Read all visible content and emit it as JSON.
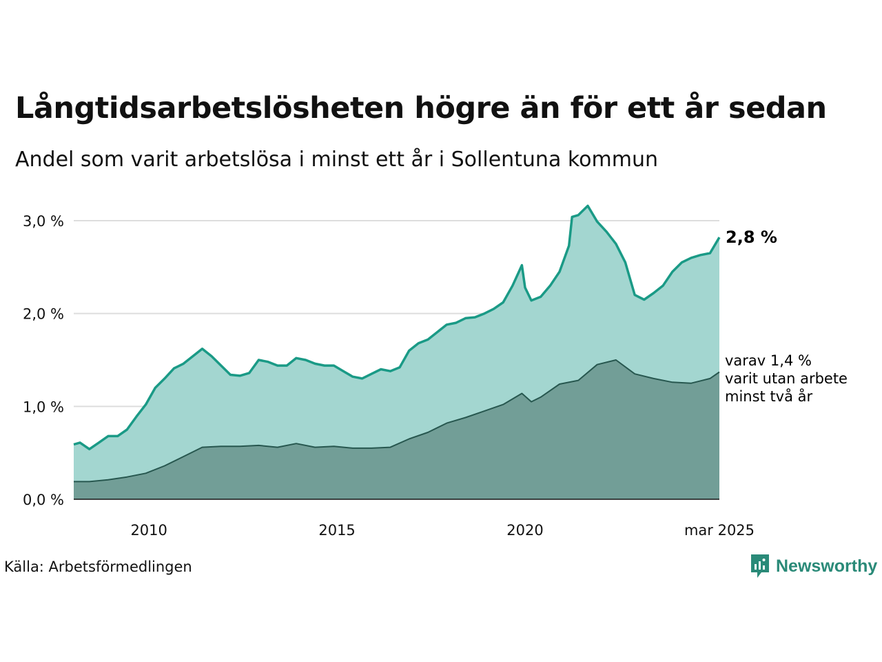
{
  "title": "Långtidsarbetslösheten högre än för ett år sedan",
  "subtitle": "Andel som varit arbetslösa i minst ett år i Sollentuna kommun",
  "source": "Källa: Arbetsförmedlingen",
  "brand": {
    "name": "Newsworthy",
    "color": "#2a8a78"
  },
  "end_label": "2,8 %",
  "sub_label_lines": [
    "varav 1,4 %",
    "varit utan arbete",
    "minst två år"
  ],
  "colors": {
    "series1_line": "#1a9a86",
    "series1_fill": "#a3d6d0",
    "series2_line": "#27574f",
    "series2_fill": "#729e97",
    "grid": "#dddddd"
  },
  "chart_data": {
    "type": "area",
    "title": "Långtidsarbetslösheten högre än för ett år sedan",
    "subtitle": "Andel som varit arbetslösa i minst ett år i Sollentuna kommun",
    "x_start": "2008-01",
    "x_end": "2025-03",
    "x_ticks": [
      {
        "x": "2010-01",
        "label": "2010"
      },
      {
        "x": "2015-01",
        "label": "2015"
      },
      {
        "x": "2020-01",
        "label": "2020"
      },
      {
        "x": "2025-03",
        "label": "mar 2025"
      }
    ],
    "y_ticks": [
      {
        "y": 0,
        "label": "0,0 %"
      },
      {
        "y": 1,
        "label": "1,0 %"
      },
      {
        "y": 2,
        "label": "2,0 %"
      },
      {
        "y": 3,
        "label": "3,0 %"
      }
    ],
    "ylim": [
      0,
      3.3
    ],
    "grid": true,
    "series": [
      {
        "values": [
          [
            "2008-01",
            0.59
          ],
          [
            "2008-03",
            0.61
          ],
          [
            "2008-06",
            0.54
          ],
          [
            "2008-09",
            0.61
          ],
          [
            "2008-12",
            0.68
          ],
          [
            "2009-03",
            0.68
          ],
          [
            "2009-06",
            0.75
          ],
          [
            "2009-09",
            0.89
          ],
          [
            "2009-12",
            1.02
          ],
          [
            "2010-03",
            1.2
          ],
          [
            "2010-06",
            1.3
          ],
          [
            "2010-09",
            1.41
          ],
          [
            "2010-12",
            1.46
          ],
          [
            "2011-03",
            1.54
          ],
          [
            "2011-06",
            1.62
          ],
          [
            "2011-09",
            1.54
          ],
          [
            "2011-12",
            1.44
          ],
          [
            "2012-03",
            1.34
          ],
          [
            "2012-06",
            1.33
          ],
          [
            "2012-09",
            1.36
          ],
          [
            "2012-12",
            1.5
          ],
          [
            "2013-03",
            1.48
          ],
          [
            "2013-06",
            1.44
          ],
          [
            "2013-09",
            1.44
          ],
          [
            "2013-12",
            1.52
          ],
          [
            "2014-03",
            1.5
          ],
          [
            "2014-06",
            1.46
          ],
          [
            "2014-09",
            1.44
          ],
          [
            "2014-12",
            1.44
          ],
          [
            "2015-03",
            1.38
          ],
          [
            "2015-06",
            1.32
          ],
          [
            "2015-09",
            1.3
          ],
          [
            "2015-12",
            1.35
          ],
          [
            "2016-03",
            1.4
          ],
          [
            "2016-06",
            1.38
          ],
          [
            "2016-09",
            1.42
          ],
          [
            "2016-12",
            1.6
          ],
          [
            "2017-03",
            1.68
          ],
          [
            "2017-06",
            1.72
          ],
          [
            "2017-09",
            1.8
          ],
          [
            "2017-12",
            1.88
          ],
          [
            "2018-03",
            1.9
          ],
          [
            "2018-06",
            1.95
          ],
          [
            "2018-09",
            1.96
          ],
          [
            "2018-12",
            2.0
          ],
          [
            "2019-03",
            2.05
          ],
          [
            "2019-06",
            2.12
          ],
          [
            "2019-09",
            2.3
          ],
          [
            "2019-12",
            2.52
          ],
          [
            "2020-01",
            2.28
          ],
          [
            "2020-03",
            2.14
          ],
          [
            "2020-06",
            2.18
          ],
          [
            "2020-09",
            2.3
          ],
          [
            "2020-12",
            2.45
          ],
          [
            "2021-03",
            2.73
          ],
          [
            "2021-04",
            3.04
          ],
          [
            "2021-06",
            3.06
          ],
          [
            "2021-09",
            3.16
          ],
          [
            "2021-12",
            2.99
          ],
          [
            "2022-03",
            2.88
          ],
          [
            "2022-06",
            2.75
          ],
          [
            "2022-09",
            2.55
          ],
          [
            "2022-12",
            2.2
          ],
          [
            "2023-03",
            2.15
          ],
          [
            "2023-06",
            2.22
          ],
          [
            "2023-09",
            2.3
          ],
          [
            "2023-12",
            2.45
          ],
          [
            "2024-03",
            2.55
          ],
          [
            "2024-06",
            2.6
          ],
          [
            "2024-09",
            2.63
          ],
          [
            "2024-12",
            2.65
          ],
          [
            "2025-03",
            2.82
          ]
        ]
      },
      {
        "values": [
          [
            "2008-01",
            0.19
          ],
          [
            "2008-06",
            0.19
          ],
          [
            "2008-12",
            0.21
          ],
          [
            "2009-06",
            0.24
          ],
          [
            "2009-12",
            0.28
          ],
          [
            "2010-06",
            0.36
          ],
          [
            "2010-12",
            0.46
          ],
          [
            "2011-06",
            0.56
          ],
          [
            "2011-12",
            0.57
          ],
          [
            "2012-06",
            0.57
          ],
          [
            "2012-12",
            0.58
          ],
          [
            "2013-06",
            0.56
          ],
          [
            "2013-12",
            0.6
          ],
          [
            "2014-06",
            0.56
          ],
          [
            "2014-12",
            0.57
          ],
          [
            "2015-06",
            0.55
          ],
          [
            "2015-12",
            0.55
          ],
          [
            "2016-06",
            0.56
          ],
          [
            "2016-12",
            0.65
          ],
          [
            "2017-06",
            0.72
          ],
          [
            "2017-12",
            0.82
          ],
          [
            "2018-06",
            0.88
          ],
          [
            "2018-12",
            0.95
          ],
          [
            "2019-06",
            1.02
          ],
          [
            "2019-12",
            1.14
          ],
          [
            "2020-03",
            1.05
          ],
          [
            "2020-06",
            1.1
          ],
          [
            "2020-12",
            1.24
          ],
          [
            "2021-06",
            1.28
          ],
          [
            "2021-12",
            1.45
          ],
          [
            "2022-06",
            1.5
          ],
          [
            "2022-12",
            1.35
          ],
          [
            "2023-06",
            1.3
          ],
          [
            "2023-12",
            1.26
          ],
          [
            "2024-06",
            1.25
          ],
          [
            "2024-12",
            1.3
          ],
          [
            "2025-03",
            1.37
          ]
        ]
      }
    ]
  }
}
